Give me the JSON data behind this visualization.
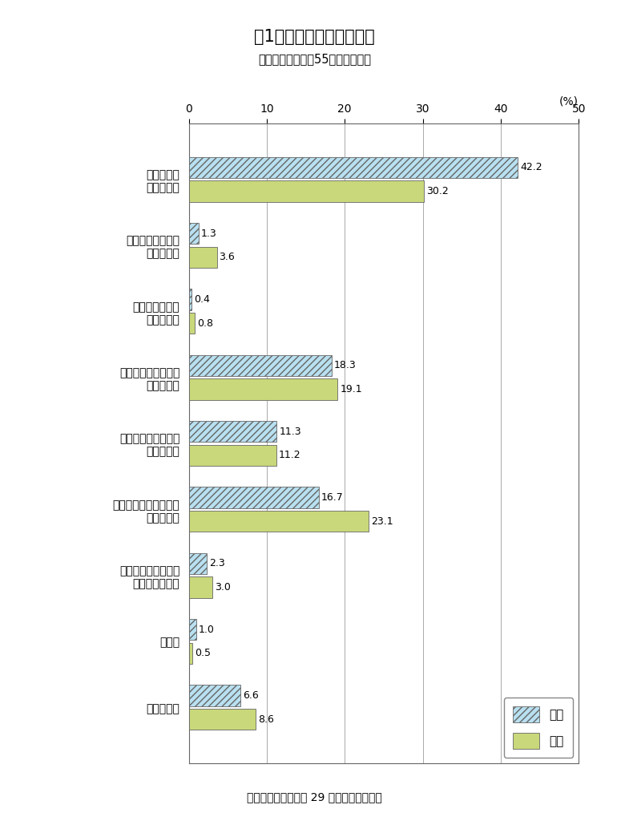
{
  "title": "図1　介護を受けたい場所",
  "subtitle": "＞調査対象：全国55歳以上の男女",
  "source": "出典：内閣府　平成 29 年版高齢社会白書",
  "categories": [
    "自宅で介護\nしてほしい",
    "子どもの家で介護\nしてほしい",
    "親族の家で介護\nしてほしい",
    "介護老人福祉施設に\n入所したい",
    "介護老人保健施設を\n利用したい",
    "病院などの医療機関に\n入院したい",
    "民間有料老人ホーム\n等を利用したい",
    "その他",
    "わからない"
  ],
  "male_values": [
    42.2,
    1.3,
    0.4,
    18.3,
    11.3,
    16.7,
    2.3,
    1.0,
    6.6
  ],
  "female_values": [
    30.2,
    3.6,
    0.8,
    19.1,
    11.2,
    23.1,
    3.0,
    0.5,
    8.6
  ],
  "male_color": "#b8e0f0",
  "female_color": "#c8d87a",
  "male_hatch": "////",
  "xlim": [
    0,
    50
  ],
  "xticks": [
    0,
    10,
    20,
    30,
    40,
    50
  ],
  "xlabel_unit": "(%)",
  "legend_male": "男性",
  "legend_female": "女性",
  "bar_height": 0.32,
  "background_color": "#ffffff",
  "grid_color": "#aaaaaa",
  "title_fontsize": 15,
  "subtitle_fontsize": 10.5,
  "label_fontsize": 10,
  "value_fontsize": 9,
  "tick_fontsize": 10,
  "source_fontsize": 10
}
